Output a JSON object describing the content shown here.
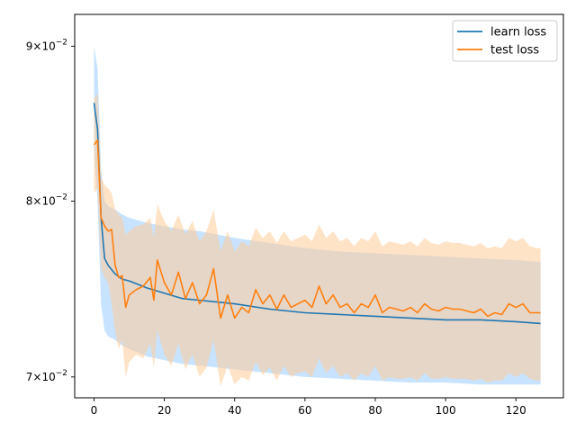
{
  "chart_data": {
    "type": "line",
    "title": "",
    "xlabel": "",
    "ylabel": "",
    "xlim": [
      -5.5,
      133.5
    ],
    "ylim": [
      0.0689,
      0.0922
    ],
    "y_scale": "log",
    "grid": false,
    "legend_position": "top-right",
    "x_ticks": [
      0,
      20,
      40,
      60,
      80,
      100,
      120
    ],
    "x_tick_labels": [
      "0",
      "20",
      "40",
      "60",
      "80",
      "100",
      "120"
    ],
    "y_ticks": [
      0.07,
      0.08,
      0.09
    ],
    "y_tick_labels": [
      {
        "mantissa": "7",
        "exp": "−2"
      },
      {
        "mantissa": "8",
        "exp": "−2"
      },
      {
        "mantissa": "9",
        "exp": "−2"
      }
    ],
    "series": [
      {
        "name": "learn loss",
        "color": "#1f77b4",
        "band_color": "#99ccff",
        "band_opacity": 0.55,
        "x": [
          0,
          1,
          2,
          3,
          4,
          6,
          8,
          10,
          15,
          20,
          25,
          30,
          35,
          40,
          50,
          60,
          70,
          80,
          90,
          100,
          110,
          120,
          127
        ],
        "y": [
          0.0862,
          0.0845,
          0.079,
          0.0766,
          0.0762,
          0.0757,
          0.0754,
          0.0753,
          0.0749,
          0.0746,
          0.0743,
          0.0742,
          0.0741,
          0.074,
          0.0737,
          0.0735,
          0.0734,
          0.0733,
          0.0732,
          0.0731,
          0.0731,
          0.073,
          0.0729
        ],
        "lower": [
          0.083,
          0.08,
          0.074,
          0.0725,
          0.0722,
          0.072,
          0.0717,
          0.0715,
          0.0711,
          0.0709,
          0.0707,
          0.0706,
          0.0705,
          0.0704,
          0.0702,
          0.07,
          0.0699,
          0.0698,
          0.0697,
          0.0697,
          0.0696,
          0.0696,
          0.0696
        ],
        "upper": [
          0.09,
          0.0885,
          0.082,
          0.08,
          0.0797,
          0.0795,
          0.0792,
          0.079,
          0.0787,
          0.0785,
          0.0783,
          0.0782,
          0.078,
          0.0778,
          0.0775,
          0.0772,
          0.077,
          0.0769,
          0.0768,
          0.0767,
          0.0766,
          0.0765,
          0.0764
        ]
      },
      {
        "name": "test loss",
        "color": "#ff7f0e",
        "band_color": "#ffcc99",
        "band_opacity": 0.55,
        "x": [
          0,
          1,
          2,
          3,
          4,
          5,
          6,
          7,
          8,
          9,
          10,
          12,
          14,
          16,
          17,
          18,
          20,
          22,
          24,
          26,
          28,
          30,
          32,
          34,
          36,
          38,
          40,
          42,
          44,
          46,
          48,
          50,
          52,
          54,
          56,
          58,
          60,
          62,
          64,
          66,
          68,
          70,
          72,
          74,
          76,
          78,
          80,
          82,
          84,
          86,
          88,
          90,
          92,
          94,
          96,
          98,
          100,
          102,
          104,
          106,
          108,
          110,
          112,
          114,
          116,
          118,
          120,
          122,
          124,
          126,
          127
        ],
        "y": [
          0.0835,
          0.0838,
          0.079,
          0.0785,
          0.0782,
          0.0783,
          0.0762,
          0.0755,
          0.0756,
          0.0738,
          0.0745,
          0.0748,
          0.075,
          0.0755,
          0.0742,
          0.0765,
          0.0752,
          0.0745,
          0.0758,
          0.0743,
          0.0752,
          0.074,
          0.0745,
          0.076,
          0.0732,
          0.0745,
          0.0732,
          0.0738,
          0.0735,
          0.0748,
          0.074,
          0.0745,
          0.0737,
          0.0745,
          0.0738,
          0.074,
          0.0742,
          0.0738,
          0.075,
          0.074,
          0.0745,
          0.0738,
          0.074,
          0.0735,
          0.074,
          0.0738,
          0.0745,
          0.0735,
          0.0738,
          0.0737,
          0.0736,
          0.0738,
          0.0735,
          0.074,
          0.0737,
          0.0736,
          0.0738,
          0.0737,
          0.0737,
          0.0736,
          0.0735,
          0.0737,
          0.0733,
          0.0735,
          0.0734,
          0.074,
          0.0738,
          0.074,
          0.0735,
          0.0735,
          0.0735
        ],
        "lower": [
          0.0805,
          0.0808,
          0.076,
          0.0755,
          0.0752,
          0.074,
          0.0725,
          0.0715,
          0.072,
          0.07,
          0.0708,
          0.0712,
          0.071,
          0.0718,
          0.0705,
          0.0725,
          0.0712,
          0.0706,
          0.0718,
          0.0704,
          0.0712,
          0.07,
          0.0705,
          0.072,
          0.0695,
          0.0706,
          0.0696,
          0.07,
          0.0698,
          0.0708,
          0.0701,
          0.0705,
          0.0698,
          0.0706,
          0.07,
          0.0702,
          0.0703,
          0.07,
          0.071,
          0.0702,
          0.0706,
          0.07,
          0.0702,
          0.0698,
          0.0702,
          0.07,
          0.0706,
          0.0698,
          0.07,
          0.0699,
          0.0699,
          0.07,
          0.0698,
          0.0702,
          0.0699,
          0.0699,
          0.07,
          0.0699,
          0.0699,
          0.0699,
          0.0698,
          0.0699,
          0.0697,
          0.0698,
          0.0698,
          0.0702,
          0.07,
          0.0702,
          0.0699,
          0.0698,
          0.0698
        ],
        "upper": [
          0.0865,
          0.0868,
          0.0815,
          0.081,
          0.0808,
          0.0805,
          0.0795,
          0.0792,
          0.079,
          0.078,
          0.0782,
          0.0785,
          0.0786,
          0.079,
          0.0778,
          0.0798,
          0.0788,
          0.0782,
          0.0792,
          0.078,
          0.0788,
          0.0776,
          0.0782,
          0.0795,
          0.077,
          0.0782,
          0.077,
          0.0776,
          0.0773,
          0.0784,
          0.0778,
          0.0782,
          0.0775,
          0.0782,
          0.0776,
          0.0778,
          0.078,
          0.0776,
          0.0786,
          0.0778,
          0.0782,
          0.0776,
          0.0778,
          0.0773,
          0.0778,
          0.0776,
          0.0782,
          0.0773,
          0.0776,
          0.0775,
          0.0774,
          0.0776,
          0.0773,
          0.0778,
          0.0775,
          0.0774,
          0.0776,
          0.0775,
          0.0775,
          0.0774,
          0.0773,
          0.0775,
          0.0772,
          0.0773,
          0.0772,
          0.0778,
          0.0776,
          0.0778,
          0.0773,
          0.0772,
          0.0772
        ]
      }
    ]
  }
}
